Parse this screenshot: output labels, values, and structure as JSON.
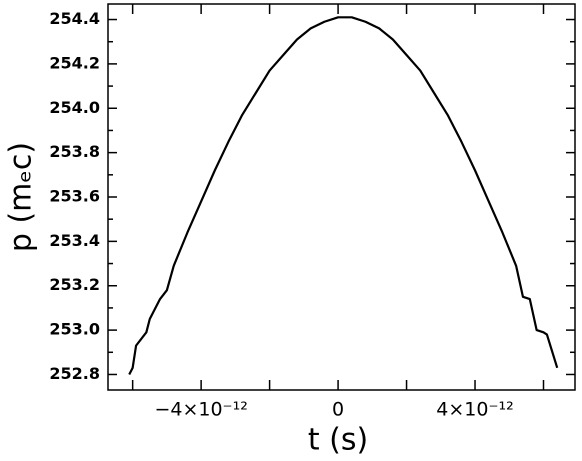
{
  "chart_data": {
    "type": "line",
    "x_label": "t (s)",
    "y_label": "p (mₑc)",
    "x": [
      -6.1e-12,
      -6e-12,
      -5.9e-12,
      -5.6e-12,
      -5.5e-12,
      -5.2e-12,
      -5e-12,
      -4.8e-12,
      -4.4e-12,
      -4e-12,
      -3.6e-12,
      -3.2e-12,
      -2.8e-12,
      -2.4e-12,
      -2e-12,
      -1.6e-12,
      -1.2e-12,
      -8e-13,
      -4e-13,
      0,
      4e-13,
      8e-13,
      1.2e-12,
      1.6e-12,
      2e-12,
      2.4e-12,
      2.8e-12,
      3.2e-12,
      3.6e-12,
      4e-12,
      4.4e-12,
      4.8e-12,
      5.2e-12,
      5.4e-12,
      5.6e-12,
      5.8e-12,
      6e-12,
      6.1e-12,
      6.3e-12,
      6.4e-12
    ],
    "values": [
      252.8,
      252.83,
      252.93,
      252.99,
      253.05,
      253.14,
      253.18,
      253.29,
      253.44,
      253.58,
      253.72,
      253.85,
      253.97,
      254.07,
      254.17,
      254.24,
      254.31,
      254.36,
      254.39,
      254.41,
      254.41,
      254.39,
      254.36,
      254.31,
      254.24,
      254.17,
      254.07,
      253.97,
      253.85,
      253.72,
      253.58,
      253.44,
      253.29,
      253.15,
      253.14,
      253.0,
      252.99,
      252.98,
      252.88,
      252.83
    ],
    "color": "#000000",
    "xlim": [
      -6.72e-12,
      6.92e-12
    ],
    "xticks": [
      {
        "value": -4e-12,
        "label": "−4×10⁻¹²"
      },
      0,
      {
        "value": 4e-12,
        "label": "4×10⁻¹²"
      }
    ],
    "xminorticks": [
      -6e-12,
      -2e-12,
      2e-12,
      6e-12
    ],
    "ylim": [
      252.73,
      254.47
    ],
    "yticks": [
      252.8,
      {
        "value": 253,
        "label": "253.0"
      },
      253.2,
      253.4,
      253.6,
      253.8,
      {
        "value": 254,
        "label": "254.0"
      },
      254.2,
      254.4
    ],
    "yminorticks": [
      252.9,
      253.1,
      253.3,
      253.5,
      253.7,
      253.9,
      254.1,
      254.3
    ]
  }
}
